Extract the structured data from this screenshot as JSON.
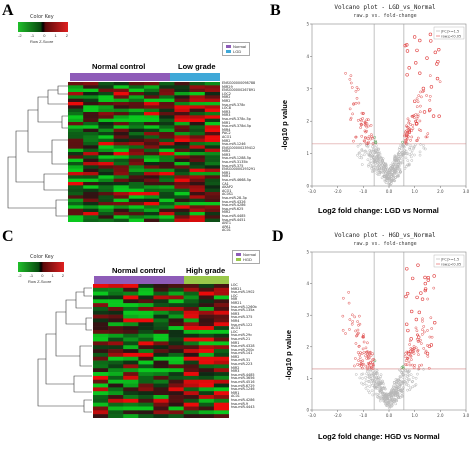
{
  "panels": {
    "A": {
      "label": "A",
      "color_key": {
        "title": "Color Key",
        "ticks": [
          "-2",
          "-1",
          "0",
          "1",
          "2"
        ],
        "sub": "Row Z-Score"
      },
      "groups": [
        {
          "label": "Normal control",
          "color": "#8e5cb8"
        },
        {
          "label": "Low grade",
          "color": "#3fa8d8"
        }
      ],
      "legend": [
        {
          "label": "Normal",
          "color": "#8e5cb8"
        },
        {
          "label": "LGD",
          "color": "#3fa8d8"
        }
      ],
      "genes": [
        "ENSG00000098788",
        "MIR29",
        "ENSG00000267891",
        "LOC2",
        "MIR2",
        "MIR2",
        "hsa-miR-378c",
        "LOC8",
        "MIR3",
        "MIR3",
        "hsa-miR-378c-5p",
        "MIR1",
        "hsa-miR-378d-5p",
        "MIR4",
        "PAC2",
        "ACO1",
        "MIR2",
        "hsa-miR-1246",
        "ENSG00000239412",
        "MIR2",
        "MIR3",
        "hsa-miR-1288-5p",
        "hsa-miR-3135b",
        "hsa-miR-375",
        "ENSG00000293291",
        "MIR1",
        "MIR1",
        "hsa-miR-4668-5p",
        "CA1",
        "AKAP2",
        "ACO1",
        "AC0S1",
        "hsa-miR-28-3p",
        "hsa-miR-4326",
        "hsa-miR-4286",
        "hsa-miR-625",
        "MIR2",
        "hsa-miR-4485",
        "hsa-miR-4451",
        "ANT1",
        "APA1",
        "AC01"
      ]
    },
    "B": {
      "label": "B",
      "title": "Volcano plot - LGD_vs_Normal",
      "subtitle": "raw.p vs. fold-change",
      "xlabel": "Log2 fold change: LGD vs Normal",
      "ylabel": "-log10 p value",
      "legend": [
        {
          "label": "|FC|>=1.5",
          "color": "#bbbbbb"
        },
        {
          "label": "raw.p<0.05",
          "color": "#e05050"
        }
      ]
    },
    "C": {
      "label": "C",
      "color_key": {
        "title": "Color Key",
        "ticks": [
          "-2",
          "-1",
          "0",
          "1",
          "2"
        ],
        "sub": "Row Z-Score"
      },
      "groups": [
        {
          "label": "Normal control",
          "color": "#8e5cb8"
        },
        {
          "label": "High grade",
          "color": "#9ac84a"
        }
      ],
      "legend": [
        {
          "label": "Normal",
          "color": "#8e5cb8"
        },
        {
          "label": "HGD",
          "color": "#9ac84a"
        }
      ],
      "genes": [
        "LOC",
        "MIR21",
        "hsa-miR-1902",
        "LOC",
        "MIR",
        "MIR21",
        "hsa-miR-1260b",
        "hsa-miR-135a",
        "MIR3",
        "hsa-miR-375",
        "MIR4",
        "hsa-miR-122",
        "ACO1",
        "LOC",
        "hsa-miR-29c",
        "hsa-miR-21",
        "MIR1",
        "hsa-miR-4328",
        "hsa-miR-200c",
        "hsa-miR-141",
        "MIR2",
        "hsa-miR-31",
        "hsa-miR-223",
        "MIR2",
        "MIR3",
        "hsa-miR-4485",
        "hsa-miR-3656",
        "hsa-miR-4516",
        "hsa-miR-6729",
        "hsa-miR-1246",
        "MIR1",
        "AC01",
        "hsa-miR-4286",
        "hsa-miR-9",
        "hsa-miR-4443"
      ]
    },
    "D": {
      "label": "D",
      "title": "Volcano plot - HGD_vs_Normal",
      "subtitle": "raw.p vs. fold-change",
      "xlabel": "Log2 fold change: HGD vs Normal",
      "ylabel": "-log10 p value",
      "legend": [
        {
          "label": "|FC|>=1.5",
          "color": "#bbbbbb"
        },
        {
          "label": "raw.p<0.05",
          "color": "#e05050"
        }
      ]
    }
  }
}
